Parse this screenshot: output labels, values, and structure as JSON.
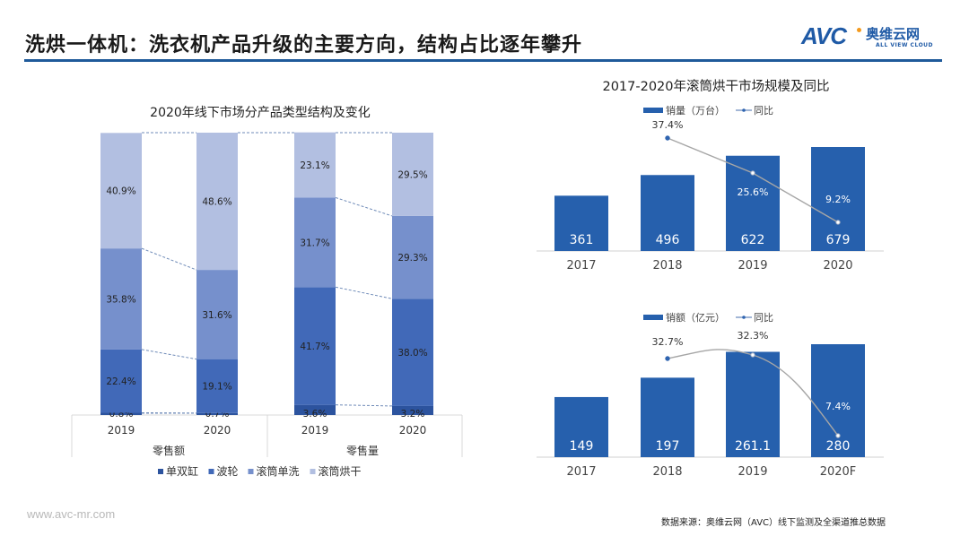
{
  "header": {
    "title": "洗烘一体机：洗衣机产品升级的主要方向，结构占比逐年攀升",
    "logo": {
      "mark": "AVC",
      "cn": "奥维云网",
      "en": "ALL VIEW CLOUD",
      "icon": "avc-logo-icon"
    }
  },
  "footer": {
    "url": "www.avc-mr.com",
    "source": "数据来源：奥维云网（AVC）线下监测及全渠道推总数据"
  },
  "colors": {
    "title_rule": "#1f5a9a",
    "bar_blue": "#2660ad",
    "seg_double_tub": "#2c539e",
    "seg_pulsator": "#4169b8",
    "seg_drum_wash": "#7690cc",
    "seg_drum_dry": "#b2bfe1",
    "line_gray": "#a6a6a6"
  },
  "chart_data": [
    {
      "type": "bar",
      "stacked": true,
      "percent": true,
      "title": "2020年线下市场分产品类型结构及变化",
      "groups": [
        {
          "label": "零售额",
          "categories": [
            "2019",
            "2020"
          ]
        },
        {
          "label": "零售量",
          "categories": [
            "2019",
            "2020"
          ]
        }
      ],
      "categories": [
        "零售额 2019",
        "零售额 2020",
        "零售量 2019",
        "零售量 2020"
      ],
      "series": [
        {
          "name": "单双缸",
          "values": [
            0.8,
            0.7,
            3.6,
            3.2
          ],
          "labels": [
            "0.8%",
            "0.7%",
            "3.6%",
            "3.2%"
          ]
        },
        {
          "name": "波轮",
          "values": [
            22.4,
            19.1,
            41.7,
            38.0
          ],
          "labels": [
            "22.4%",
            "19.1%",
            "41.7%",
            "38.0%"
          ]
        },
        {
          "name": "滚筒单洗",
          "values": [
            35.8,
            31.6,
            31.7,
            29.3
          ],
          "labels": [
            "35.8%",
            "31.6%",
            "31.7%",
            "29.3%"
          ]
        },
        {
          "name": "滚筒烘干",
          "values": [
            40.9,
            48.6,
            23.1,
            29.5
          ],
          "labels": [
            "40.9%",
            "48.6%",
            "23.1%",
            "29.5%"
          ]
        }
      ],
      "legend": {
        "position": "bottom"
      },
      "ylim": [
        0,
        100
      ]
    },
    {
      "type": "bar",
      "title": "2017-2020年滚筒烘干市场规模及同比",
      "categories": [
        "2017",
        "2018",
        "2019",
        "2020"
      ],
      "series": [
        {
          "name": "销量（万台）",
          "type": "bar",
          "values": [
            361,
            496,
            622,
            679
          ],
          "labels": [
            "361",
            "496",
            "622",
            "679"
          ]
        },
        {
          "name": "同比",
          "type": "line",
          "values": [
            null,
            37.4,
            25.6,
            9.2
          ],
          "labels": [
            "",
            "37.4%",
            "25.6%",
            "9.2%"
          ]
        }
      ],
      "legend": {
        "position": "top"
      }
    },
    {
      "type": "bar",
      "title": "",
      "categories": [
        "2017",
        "2018",
        "2019",
        "2020F"
      ],
      "series": [
        {
          "name": "销额（亿元）",
          "type": "bar",
          "values": [
            149,
            197,
            261.1,
            280
          ],
          "labels": [
            "149",
            "197",
            "261.1",
            "280"
          ]
        },
        {
          "name": "同比",
          "type": "line",
          "values": [
            null,
            32.7,
            32.3,
            7.4
          ],
          "labels": [
            "",
            "32.7%",
            "32.3%",
            "7.4%"
          ]
        }
      ],
      "legend": {
        "position": "top"
      }
    }
  ]
}
